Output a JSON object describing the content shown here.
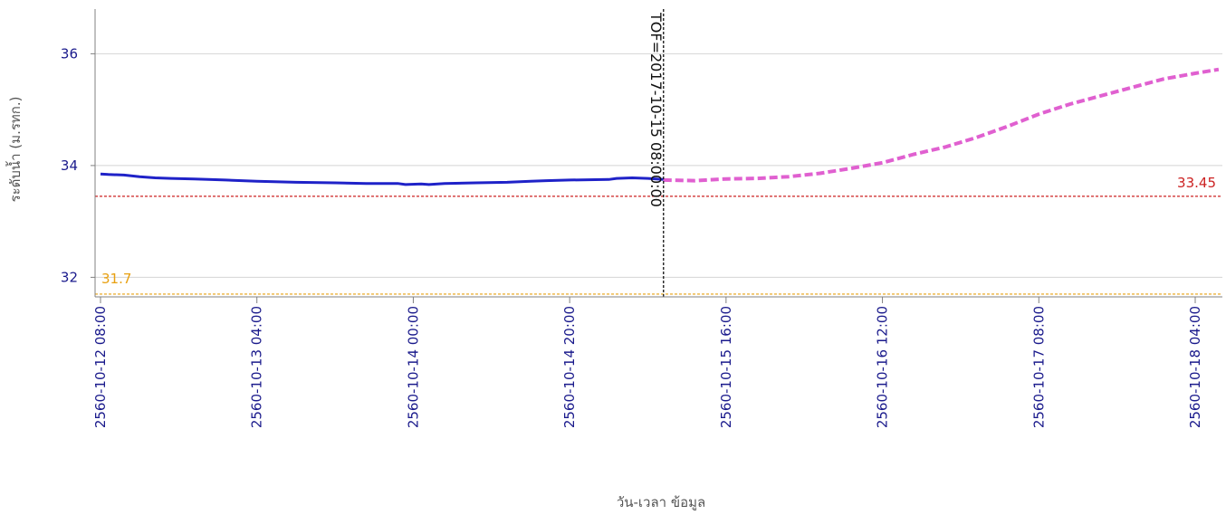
{
  "chart_data": {
    "type": "line",
    "xlabel": "วัน-เวลา ข้อมูล",
    "ylabel": "ระดับน้ำ (ม.รทก.)",
    "x_unit": "hours",
    "xlim": [
      0,
      143
    ],
    "ylim": [
      31.65,
      36.8
    ],
    "y_ticks": [
      32,
      34,
      36
    ],
    "grid": true,
    "x_ticks": [
      {
        "x": 0,
        "label": "2560-10-12 08:00"
      },
      {
        "x": 20,
        "label": "2560-10-13 04:00"
      },
      {
        "x": 40,
        "label": "2560-10-14 00:00"
      },
      {
        "x": 60,
        "label": "2560-10-14 20:00"
      },
      {
        "x": 80,
        "label": "2560-10-15 16:00"
      },
      {
        "x": 100,
        "label": "2560-10-16 12:00"
      },
      {
        "x": 120,
        "label": "2560-10-17 08:00"
      },
      {
        "x": 140,
        "label": "2560-10-18 04:00"
      }
    ],
    "series": [
      {
        "style": "solid",
        "color": "#1f22c8",
        "x": [
          0,
          1,
          3,
          5,
          7,
          9,
          12,
          16,
          20,
          25,
          30,
          34,
          38,
          39,
          41,
          42,
          44,
          48,
          52,
          55,
          57,
          60,
          65,
          66,
          68,
          70,
          72
        ],
        "y": [
          33.85,
          33.84,
          33.83,
          33.8,
          33.78,
          33.77,
          33.76,
          33.74,
          33.72,
          33.7,
          33.69,
          33.68,
          33.68,
          33.66,
          33.67,
          33.66,
          33.68,
          33.69,
          33.7,
          33.72,
          33.73,
          33.74,
          33.75,
          33.77,
          33.78,
          33.77,
          33.75
        ]
      },
      {
        "style": "dashed",
        "color": "#e060d0",
        "x": [
          72,
          76,
          80,
          84,
          88,
          92,
          96,
          100,
          104,
          108,
          112,
          116,
          120,
          124,
          128,
          132,
          136,
          140,
          143
        ],
        "y": [
          33.74,
          33.73,
          33.76,
          33.77,
          33.8,
          33.86,
          33.95,
          34.05,
          34.2,
          34.33,
          34.5,
          34.7,
          34.92,
          35.1,
          35.25,
          35.4,
          35.55,
          35.65,
          35.72
        ]
      }
    ],
    "reference_lines": [
      {
        "y": 33.45,
        "label": "33.45",
        "color": "#cc2222"
      },
      {
        "y": 31.7,
        "label": "31.7",
        "color": "#e8a010"
      }
    ],
    "marker": {
      "x": 72,
      "label": "TOF=2017-10-15 08:00:00",
      "color": "#111111"
    }
  }
}
